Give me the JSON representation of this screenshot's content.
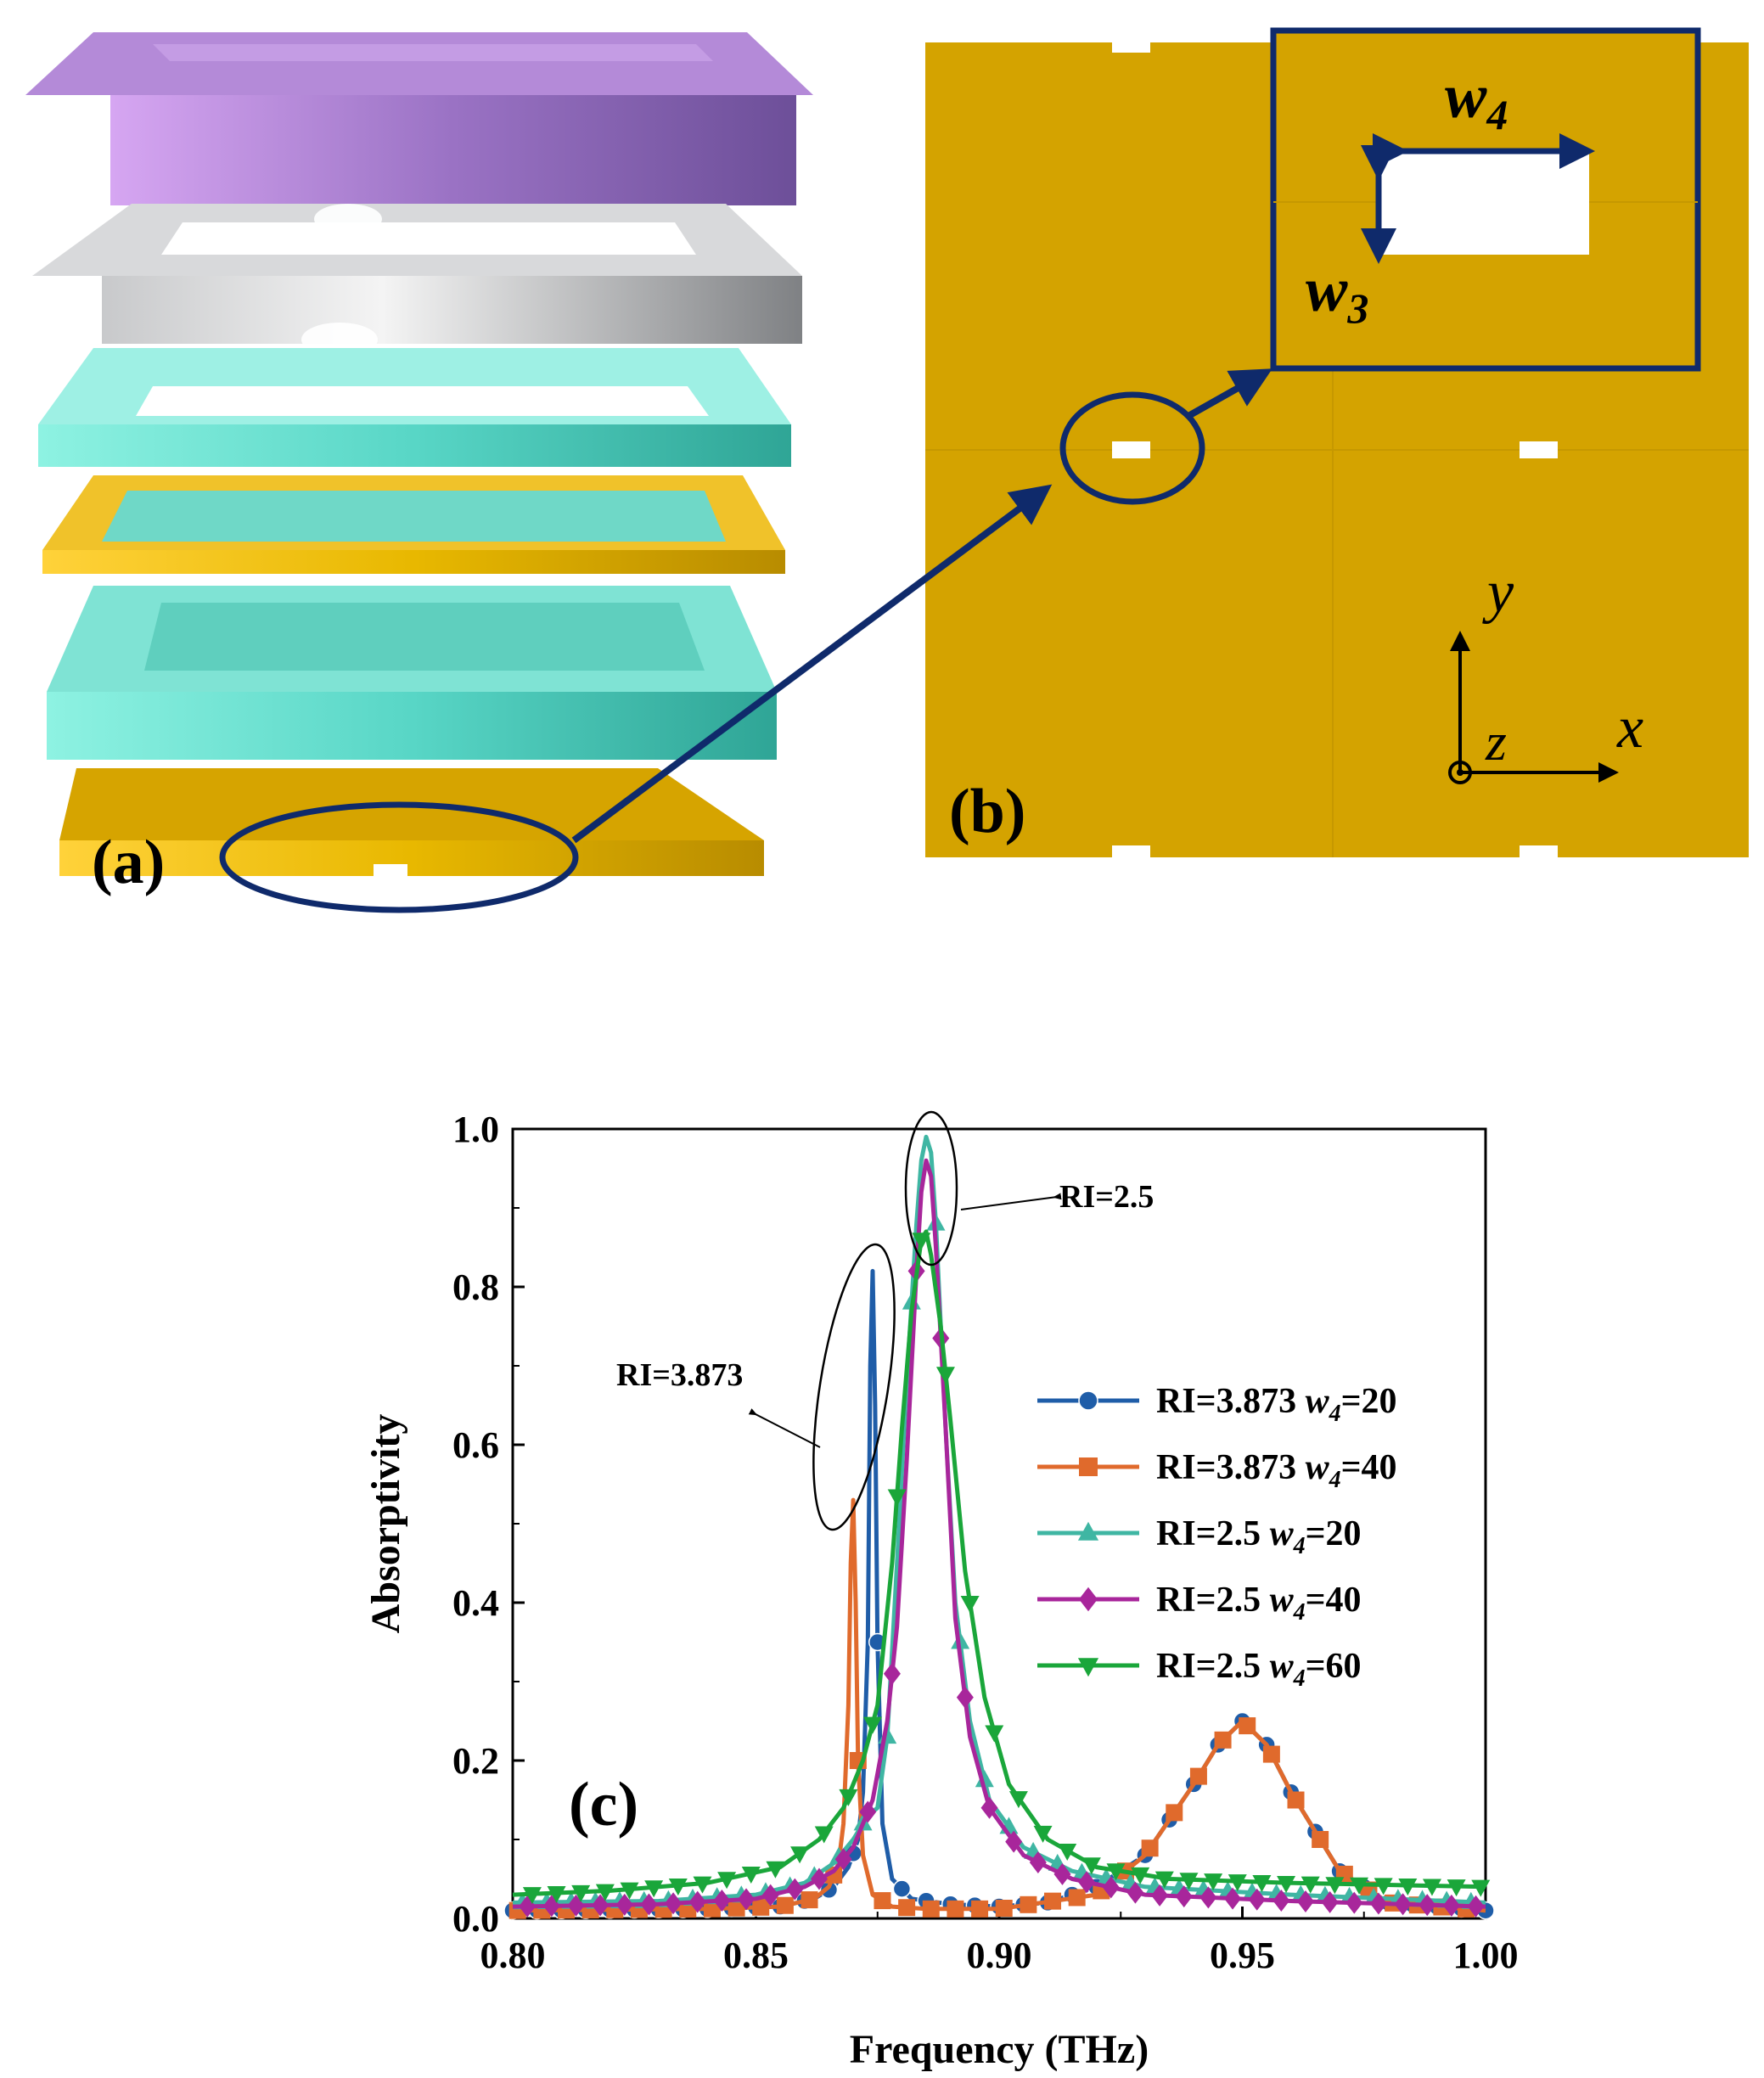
{
  "colors": {
    "navy": "#0f2a6b",
    "gold": "#d4a300",
    "gold_light": "#e8b800",
    "purple": "#9a72c4",
    "silver": "#9ea0a3",
    "teal": "#58d6c6",
    "black": "#000000"
  },
  "panel_a": {
    "label": "(a)"
  },
  "panel_b": {
    "label": "(b)",
    "w4_main": "w",
    "w4_sub": "4",
    "w3_main": "w",
    "w3_sub": "3",
    "axis_y": "y",
    "axis_x": "x",
    "axis_z": "z"
  },
  "chart_data": {
    "type": "line",
    "panel_label": "(c)",
    "xlabel": "Frequency (THz)",
    "ylabel": "Absorptivity",
    "xlim": [
      0.8,
      1.0
    ],
    "ylim": [
      0.0,
      1.0
    ],
    "xticks": [
      "0.80",
      "0.85",
      "0.90",
      "0.95",
      "1.00"
    ],
    "yticks": [
      "0.0",
      "0.2",
      "0.4",
      "0.6",
      "0.8",
      "1.0"
    ],
    "legend_position": "right-middle",
    "annotations": [
      {
        "text": "RI=2.5",
        "target_x": 0.8855,
        "target_y": 0.92
      },
      {
        "text": "RI=3.873",
        "target_x": 0.871,
        "target_y": 0.62
      }
    ],
    "series": [
      {
        "name": "RI=3.873 ",
        "name_italic": "w",
        "name_sub": "4",
        "name_tail": "=20",
        "color": "#1f5da8",
        "marker": "circle",
        "x": [
          0.8,
          0.84,
          0.855,
          0.862,
          0.866,
          0.869,
          0.871,
          0.872,
          0.873,
          0.8735,
          0.874,
          0.8745,
          0.875,
          0.876,
          0.878,
          0.882,
          0.89,
          0.9,
          0.91,
          0.92,
          0.93,
          0.94,
          0.945,
          0.95,
          0.955,
          0.96,
          0.97,
          0.98,
          1.0
        ],
        "y": [
          0.01,
          0.012,
          0.015,
          0.025,
          0.04,
          0.065,
          0.1,
          0.16,
          0.35,
          0.7,
          0.82,
          0.65,
          0.35,
          0.12,
          0.05,
          0.025,
          0.018,
          0.015,
          0.02,
          0.04,
          0.08,
          0.17,
          0.22,
          0.25,
          0.22,
          0.16,
          0.06,
          0.02,
          0.01
        ]
      },
      {
        "name": "RI=3.873 ",
        "name_italic": "w",
        "name_sub": "4",
        "name_tail": "=40",
        "color": "#e06a2c",
        "marker": "square",
        "x": [
          0.8,
          0.84,
          0.855,
          0.862,
          0.865,
          0.867,
          0.868,
          0.869,
          0.8695,
          0.87,
          0.8705,
          0.871,
          0.872,
          0.874,
          0.878,
          0.885,
          0.9,
          0.92,
          0.93,
          0.94,
          0.945,
          0.95,
          0.955,
          0.96,
          0.97,
          0.98,
          1.0
        ],
        "y": [
          0.01,
          0.012,
          0.015,
          0.025,
          0.04,
          0.07,
          0.12,
          0.27,
          0.45,
          0.53,
          0.4,
          0.2,
          0.08,
          0.03,
          0.015,
          0.012,
          0.012,
          0.03,
          0.08,
          0.17,
          0.22,
          0.25,
          0.22,
          0.16,
          0.06,
          0.02,
          0.01
        ]
      },
      {
        "name": "RI=2.5 ",
        "name_italic": "w",
        "name_sub": "4",
        "name_tail": "=20",
        "color": "#3fb6a3",
        "marker": "triangle-up",
        "x": [
          0.8,
          0.83,
          0.85,
          0.86,
          0.866,
          0.87,
          0.873,
          0.875,
          0.877,
          0.879,
          0.881,
          0.883,
          0.884,
          0.885,
          0.886,
          0.887,
          0.889,
          0.891,
          0.894,
          0.898,
          0.905,
          0.915,
          0.93,
          0.96,
          1.0
        ],
        "y": [
          0.02,
          0.022,
          0.03,
          0.045,
          0.07,
          0.1,
          0.13,
          0.14,
          0.23,
          0.45,
          0.68,
          0.88,
          0.96,
          0.99,
          0.97,
          0.88,
          0.62,
          0.4,
          0.25,
          0.15,
          0.09,
          0.06,
          0.04,
          0.03,
          0.02
        ]
      },
      {
        "name": "RI=2.5 ",
        "name_italic": "w",
        "name_sub": "4",
        "name_tail": "=40",
        "color": "#a8269b",
        "marker": "diamond",
        "x": [
          0.8,
          0.83,
          0.85,
          0.86,
          0.866,
          0.87,
          0.874,
          0.877,
          0.879,
          0.881,
          0.883,
          0.884,
          0.885,
          0.886,
          0.887,
          0.889,
          0.891,
          0.894,
          0.898,
          0.905,
          0.915,
          0.93,
          0.96,
          1.0
        ],
        "y": [
          0.015,
          0.018,
          0.025,
          0.04,
          0.06,
          0.09,
          0.15,
          0.25,
          0.37,
          0.58,
          0.82,
          0.92,
          0.96,
          0.94,
          0.85,
          0.62,
          0.38,
          0.23,
          0.14,
          0.08,
          0.05,
          0.03,
          0.022,
          0.015
        ]
      },
      {
        "name": "RI=2.5 ",
        "name_italic": "w",
        "name_sub": "4",
        "name_tail": "=60",
        "color": "#1aa63a",
        "marker": "triangle-down",
        "x": [
          0.8,
          0.82,
          0.84,
          0.855,
          0.863,
          0.868,
          0.872,
          0.875,
          0.878,
          0.88,
          0.882,
          0.884,
          0.885,
          0.886,
          0.888,
          0.89,
          0.893,
          0.897,
          0.902,
          0.91,
          0.92,
          0.935,
          0.96,
          1.0
        ],
        "y": [
          0.03,
          0.035,
          0.045,
          0.065,
          0.1,
          0.14,
          0.2,
          0.27,
          0.45,
          0.62,
          0.77,
          0.86,
          0.87,
          0.84,
          0.75,
          0.63,
          0.44,
          0.28,
          0.17,
          0.1,
          0.065,
          0.05,
          0.045,
          0.04
        ]
      }
    ]
  }
}
